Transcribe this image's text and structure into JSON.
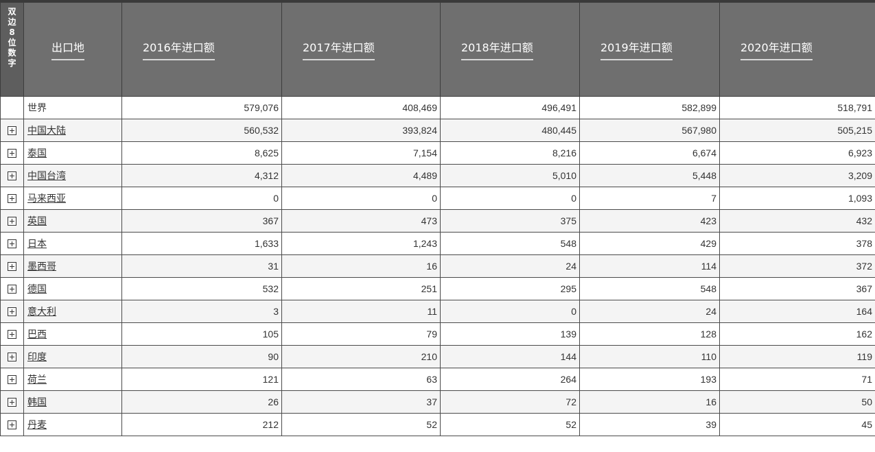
{
  "table": {
    "corner_label": "双边8位数字",
    "headers": [
      "出口地",
      "2016年进口额",
      "2017年进口额",
      "2018年进口额",
      "2019年进口额",
      "2020年进口额"
    ],
    "world_row": {
      "origin": "世界",
      "values": [
        "579,076",
        "408,469",
        "496,491",
        "582,899",
        "518,791"
      ]
    },
    "rows": [
      {
        "origin": "中国大陆",
        "values": [
          "560,532",
          "393,824",
          "480,445",
          "567,980",
          "505,215"
        ]
      },
      {
        "origin": "泰国",
        "values": [
          "8,625",
          "7,154",
          "8,216",
          "6,674",
          "6,923"
        ]
      },
      {
        "origin": "中国台湾",
        "values": [
          "4,312",
          "4,489",
          "5,010",
          "5,448",
          "3,209"
        ]
      },
      {
        "origin": "马来西亚",
        "values": [
          "0",
          "0",
          "0",
          "7",
          "1,093"
        ]
      },
      {
        "origin": "英国",
        "values": [
          "367",
          "473",
          "375",
          "423",
          "432"
        ]
      },
      {
        "origin": "日本",
        "values": [
          "1,633",
          "1,243",
          "548",
          "429",
          "378"
        ]
      },
      {
        "origin": "墨西哥",
        "values": [
          "31",
          "16",
          "24",
          "114",
          "372"
        ]
      },
      {
        "origin": "德国",
        "values": [
          "532",
          "251",
          "295",
          "548",
          "367"
        ]
      },
      {
        "origin": "意大利",
        "values": [
          "3",
          "11",
          "0",
          "24",
          "164"
        ]
      },
      {
        "origin": "巴西",
        "values": [
          "105",
          "79",
          "139",
          "128",
          "162"
        ]
      },
      {
        "origin": "印度",
        "values": [
          "90",
          "210",
          "144",
          "110",
          "119"
        ]
      },
      {
        "origin": "荷兰",
        "values": [
          "121",
          "63",
          "264",
          "193",
          "71"
        ]
      },
      {
        "origin": "韩国",
        "values": [
          "26",
          "37",
          "72",
          "16",
          "50"
        ]
      },
      {
        "origin": "丹麦",
        "values": [
          "212",
          "52",
          "52",
          "39",
          "45"
        ]
      }
    ]
  },
  "icons": {
    "expand": "plus-box-icon"
  }
}
